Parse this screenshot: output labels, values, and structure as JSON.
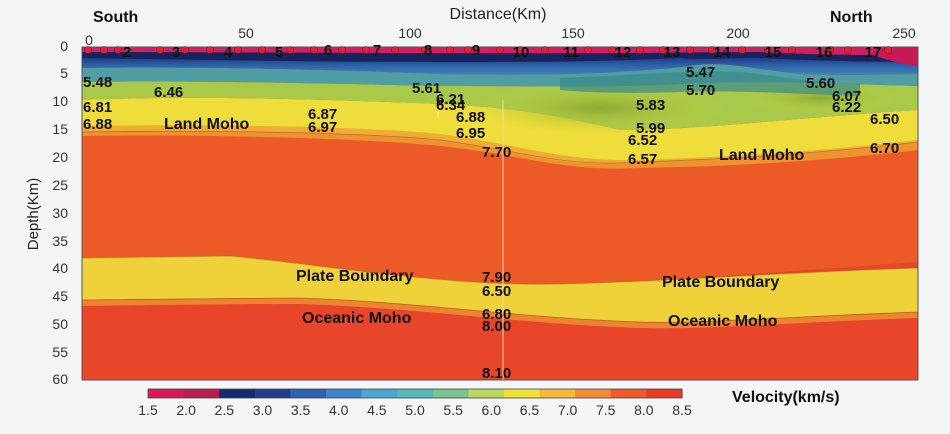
{
  "diagram": {
    "side_left": "South",
    "side_right": "North",
    "x_axis_title": "Distance(Km)",
    "y_axis_title": "Depth(Km)",
    "x_ticks": [
      "0",
      "50",
      "100",
      "150",
      "200",
      "250"
    ],
    "y_ticks": [
      "0",
      "5",
      "10",
      "15",
      "20",
      "25",
      "30",
      "35",
      "40",
      "45",
      "50",
      "55",
      "60"
    ],
    "stations": [
      "2",
      "3",
      "4",
      "5",
      "6",
      "7",
      "8",
      "9",
      "10",
      "11",
      "12",
      "13",
      "14",
      "15",
      "16",
      "17"
    ],
    "velocity_labels": [
      "5.48",
      "6.46",
      "6.81",
      "6.88",
      "6.87",
      "6.97",
      "5.61",
      "6.21",
      "6.34",
      "6.88",
      "6.95",
      "7.70",
      "5.47",
      "5.70",
      "5.83",
      "5.99",
      "6.52",
      "6.57",
      "5.60",
      "6.07",
      "6.22",
      "6.50",
      "6.70",
      "7.90",
      "6.50",
      "6.80",
      "8.00",
      "8.10"
    ],
    "interface_labels": {
      "land_moho_left": "Land Moho",
      "land_moho_right": "Land Moho",
      "plate_boundary_left": "Plate Boundary",
      "plate_boundary_right": "Plate Boundary",
      "oceanic_moho_left": "Oceanic Moho",
      "oceanic_moho_right": "Oceanic Moho"
    },
    "colorbar": {
      "title": "Velocity(km/s)",
      "ticks": [
        "1.5",
        "2.0",
        "2.5",
        "3.0",
        "3.5",
        "4.0",
        "4.5",
        "5.0",
        "5.5",
        "6.0",
        "6.5",
        "7.0",
        "7.5",
        "8.0",
        "8.5"
      ],
      "colors": [
        "#d8185a",
        "#b81d4e",
        "#152a70",
        "#1f3d8c",
        "#2c62b0",
        "#3b86c8",
        "#4ba6d0",
        "#58b8b8",
        "#78c490",
        "#b8d860",
        "#eee237",
        "#f5b838",
        "#f58a30",
        "#ee5a2a",
        "#e63a25"
      ]
    }
  }
}
